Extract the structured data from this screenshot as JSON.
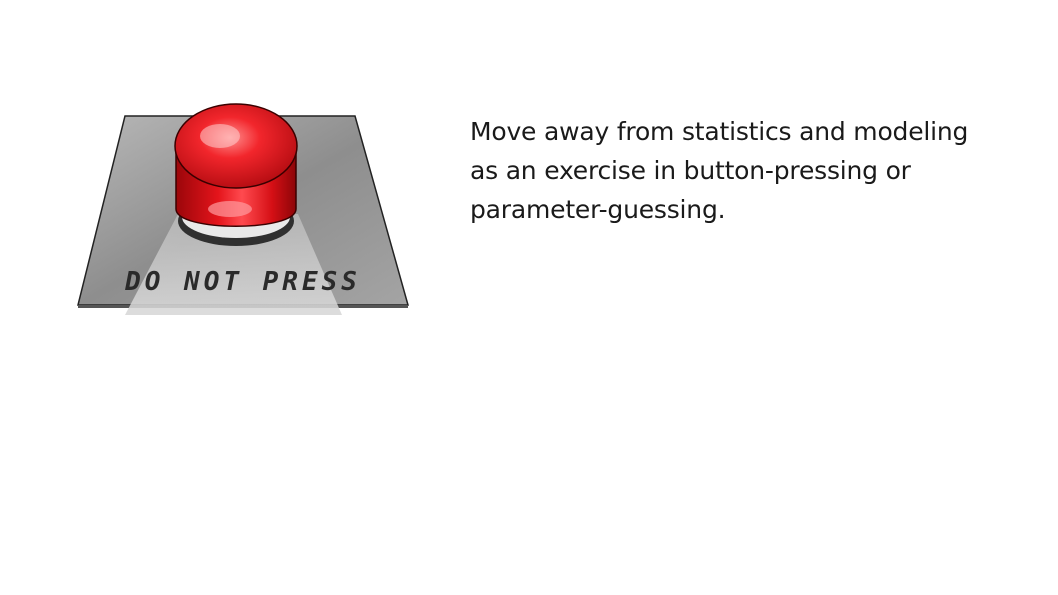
{
  "slide": {
    "caption_lines": [
      "Move away from statistics and modeling",
      "as an exercise in button-pressing or",
      "parameter-guessing."
    ],
    "illustration": {
      "icon": "red-button-icon",
      "stencil_text": "DO NOT PRESS",
      "colors": {
        "button": "#e0141b",
        "plate": "#9a9a9a",
        "background": "#ffffff"
      }
    }
  }
}
